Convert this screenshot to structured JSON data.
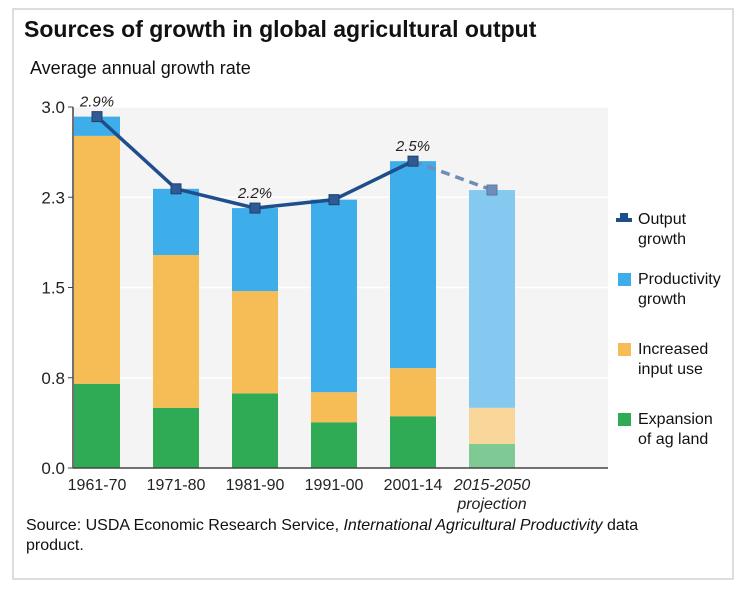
{
  "title": "Sources of growth in global agricultural output",
  "subtitle": "Average annual growth rate",
  "source": {
    "prefix": "Source: USDA Economic Research Service, ",
    "italic": "International Agricultural Productivity",
    "suffix": " data product."
  },
  "legend": [
    {
      "l1": "Output",
      "l2": "growth",
      "color": "#1f4e8c"
    },
    {
      "l1": "Productivity",
      "l2": "growth",
      "color": "#3daee9"
    },
    {
      "l1": "Increased",
      "l2": "input use",
      "color": "#f6bc55"
    },
    {
      "l1": "Expansion",
      "l2": "of ag land",
      "color": "#2fab55"
    }
  ],
  "chart_data": {
    "type": "bar",
    "stacked": true,
    "categories": [
      "1961-70",
      "1971-80",
      "1981-90",
      "1991-00",
      "2001-14",
      "2015-2050 projection"
    ],
    "projection_category_label": [
      "2015-2050",
      "projection"
    ],
    "ylim": [
      0,
      3.0
    ],
    "yticks": [
      "0.0",
      "0.8",
      "1.5",
      "2.3",
      "3.0"
    ],
    "ytick_values": [
      0,
      0.75,
      1.5,
      2.25,
      3.0
    ],
    "grid": true,
    "legend_position": "right",
    "series": [
      {
        "name": "Expansion of ag land",
        "color": "#2fab55",
        "values": [
          0.7,
          0.5,
          0.62,
          0.38,
          0.43,
          0.2
        ]
      },
      {
        "name": "Increased input use",
        "color": "#f6bc55",
        "values": [
          2.06,
          1.27,
          0.85,
          0.25,
          0.4,
          0.3
        ]
      },
      {
        "name": "Productivity growth",
        "color": "#3daee9",
        "values": [
          0.16,
          0.55,
          0.69,
          1.6,
          1.72,
          1.81
        ]
      }
    ],
    "line": {
      "name": "Output growth",
      "color": "#1f4e8c",
      "values": [
        2.92,
        2.32,
        2.16,
        2.23,
        2.55,
        2.31
      ]
    },
    "annotations": [
      {
        "index": 0,
        "text": "2.9%"
      },
      {
        "index": 2,
        "text": "2.2%"
      },
      {
        "index": 4,
        "text": "2.5%"
      }
    ]
  }
}
